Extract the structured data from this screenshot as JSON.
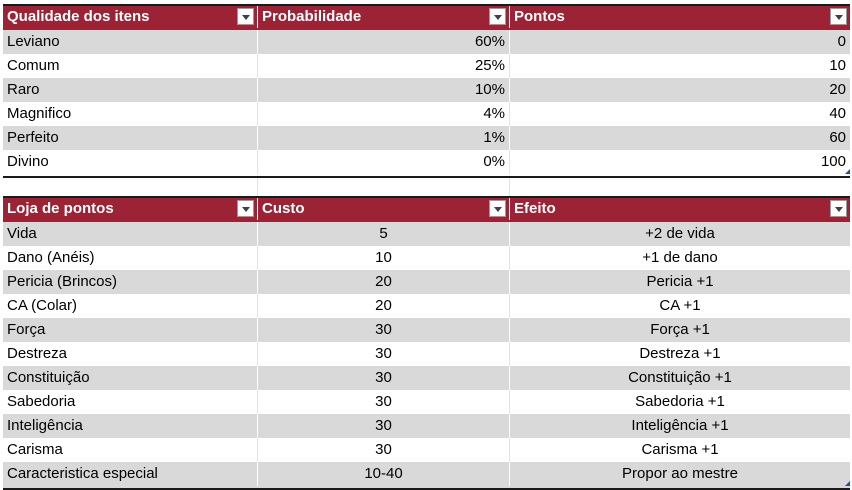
{
  "table1": {
    "headers": [
      "Qualidade dos itens",
      "Probabilidade",
      "Pontos"
    ],
    "rows": [
      [
        "Leviano",
        "60%",
        "0"
      ],
      [
        "Comum",
        "25%",
        "10"
      ],
      [
        "Raro",
        "10%",
        "20"
      ],
      [
        "Magnifico",
        "4%",
        "40"
      ],
      [
        "Perfeito",
        "1%",
        "60"
      ],
      [
        "Divino",
        "0%",
        "100"
      ]
    ]
  },
  "table2": {
    "headers": [
      "Loja de pontos",
      "Custo",
      "Efeito"
    ],
    "rows": [
      [
        "Vida",
        "5",
        "+2 de vida"
      ],
      [
        "Dano (Anéis)",
        "10",
        "+1 de dano"
      ],
      [
        "Pericia (Brincos)",
        "20",
        "Pericia +1"
      ],
      [
        "CA (Colar)",
        "20",
        "CA +1"
      ],
      [
        "Força",
        "30",
        "Força +1"
      ],
      [
        "Destreza",
        "30",
        "Destreza +1"
      ],
      [
        "Constituição",
        "30",
        "Constituição +1"
      ],
      [
        "Sabedoria",
        "30",
        "Sabedoria +1"
      ],
      [
        "Inteligência",
        "30",
        "Inteligência +1"
      ],
      [
        "Carisma",
        "30",
        "Carisma +1"
      ],
      [
        "Caracteristica especial",
        "10-40",
        "Propor ao mestre"
      ]
    ]
  },
  "icons": {
    "filter_dropdown": "chevron-down-icon",
    "resize_handle": "table-resize-handle-icon"
  },
  "colors": {
    "header_bg": "#9b2335",
    "band_bg": "#d9d9d9"
  }
}
